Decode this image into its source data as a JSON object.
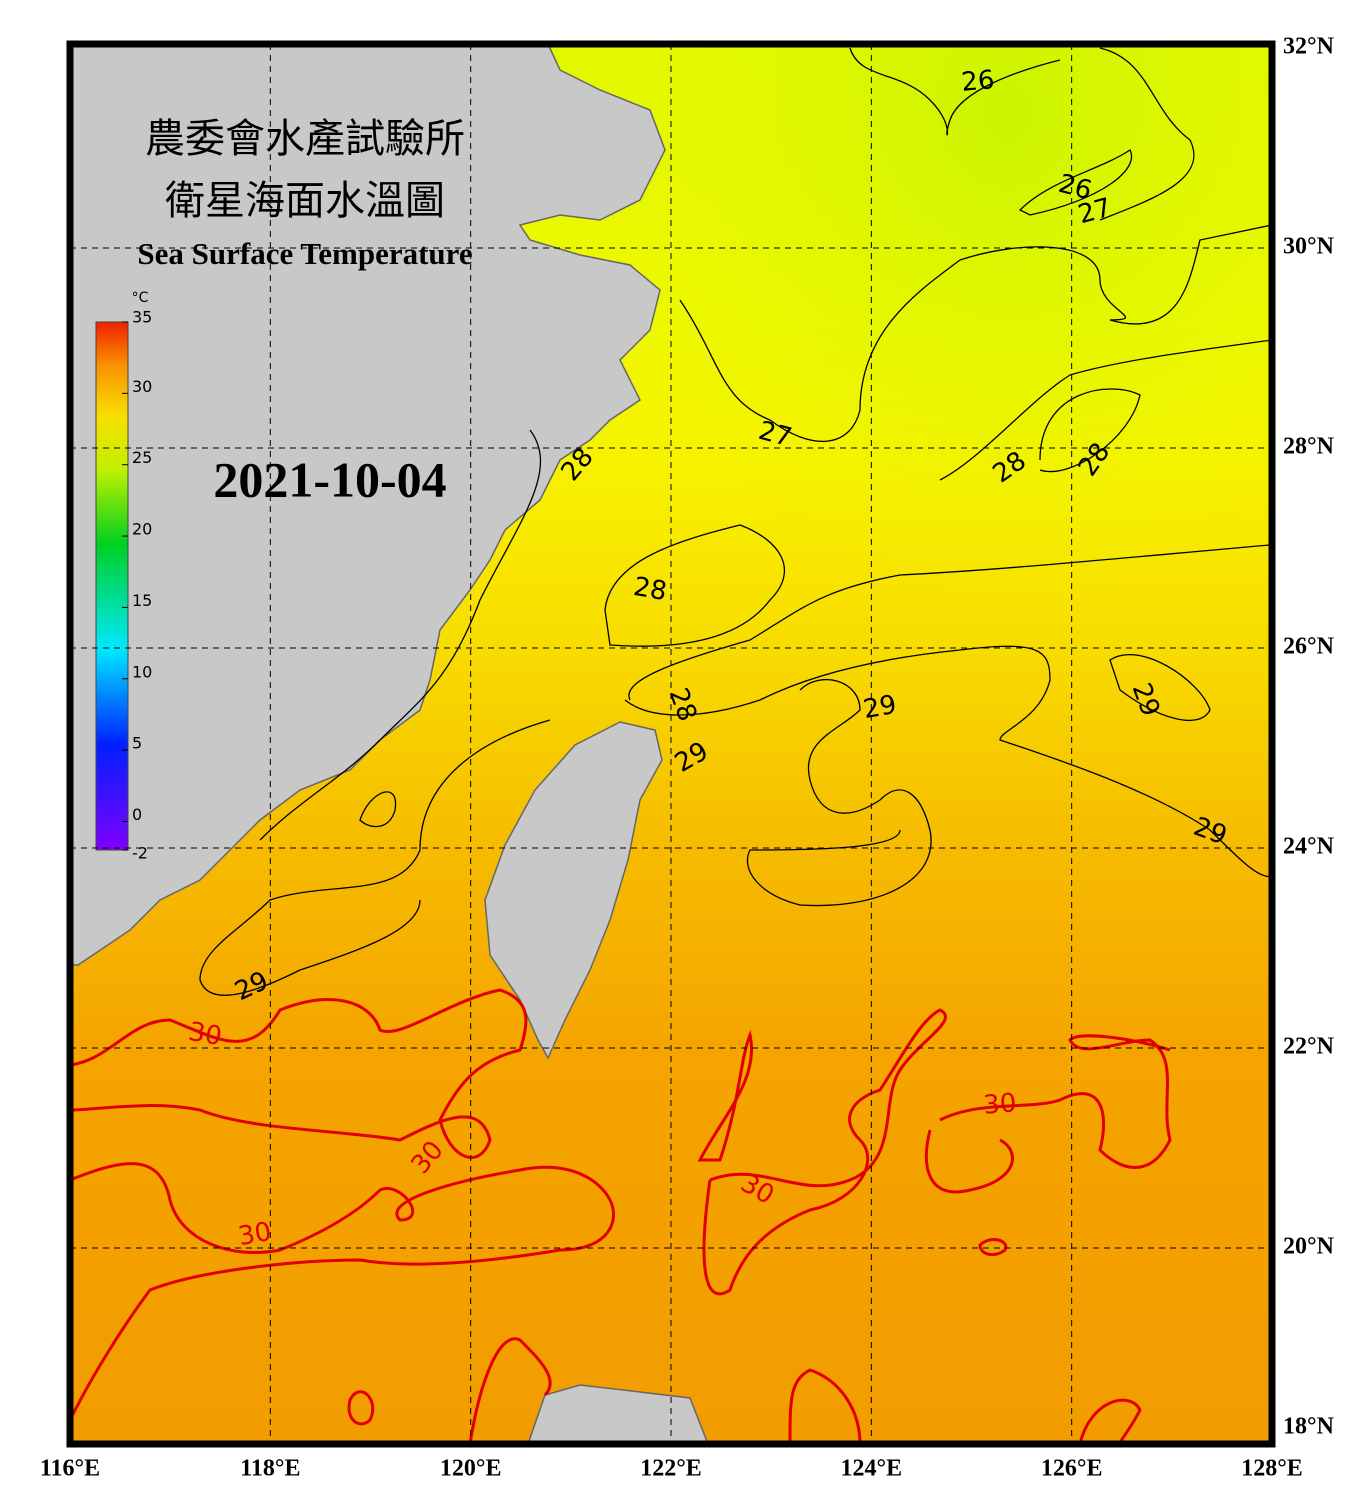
{
  "title_zh": [
    "農委會水產試驗所",
    "衛星海面水溫圖"
  ],
  "title_en": "Sea Surface Temperature",
  "date": "2021-10-04",
  "colorbar": {
    "unit": "°C",
    "range": [
      -2,
      35
    ],
    "ticks": [
      35,
      30,
      25,
      20,
      15,
      10,
      5,
      0,
      -2
    ]
  },
  "map": {
    "xlim": [
      116,
      128
    ],
    "ylim": [
      18,
      32
    ],
    "grid": true,
    "xticks": [
      {
        "value": 116,
        "label": "116°E"
      },
      {
        "value": 118,
        "label": "118°E"
      },
      {
        "value": 120,
        "label": "120°E"
      },
      {
        "value": 122,
        "label": "122°E"
      },
      {
        "value": 124,
        "label": "124°E"
      },
      {
        "value": 126,
        "label": "126°E"
      },
      {
        "value": 128,
        "label": "128°E"
      }
    ],
    "yticks": [
      {
        "value": 18,
        "label": "18°N"
      },
      {
        "value": 20,
        "label": "20°N"
      },
      {
        "value": 22,
        "label": "22°N"
      },
      {
        "value": 24,
        "label": "24°N"
      },
      {
        "value": 26,
        "label": "26°N"
      },
      {
        "value": 28,
        "label": "28°N"
      },
      {
        "value": 30,
        "label": "30°N"
      },
      {
        "value": 32,
        "label": "32°N"
      }
    ]
  },
  "contour_labels": [
    "26",
    "26",
    "27",
    "27",
    "28",
    "28",
    "28",
    "28",
    "28",
    "29",
    "29",
    "29",
    "29",
    "29",
    "30",
    "30",
    "30",
    "30",
    "30"
  ]
}
